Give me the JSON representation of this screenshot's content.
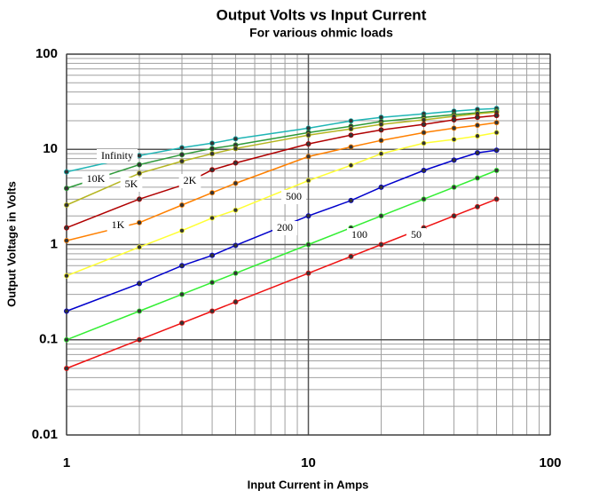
{
  "chart_data": {
    "type": "line",
    "title": "Output Volts vs Input Current",
    "subtitle": "For various ohmic loads",
    "x_label": "Input Current in Amps",
    "y_label": "Output Voltage in Volts",
    "x": [
      1,
      2,
      3,
      4,
      5,
      10,
      15,
      20,
      30,
      40,
      50,
      60
    ],
    "xscale": "log",
    "yscale": "log",
    "xlim": [
      1,
      100
    ],
    "ylim": [
      0.01,
      100
    ],
    "xticks": [
      1,
      10,
      100
    ],
    "yticks": [
      0.01,
      0.1,
      1,
      10,
      100
    ],
    "grid": true,
    "series": [
      {
        "name": "Infinity",
        "color": "#1fb5b5",
        "values": [
          5.8,
          8.6,
          10.4,
          11.6,
          12.9,
          16.7,
          19.9,
          21.7,
          23.6,
          25.2,
          26.3,
          26.9
        ]
      },
      {
        "name": "10K",
        "color": "#2e9a3a",
        "values": [
          3.9,
          6.9,
          8.8,
          10.2,
          11.1,
          15.0,
          17.5,
          19.6,
          21.7,
          23.2,
          24.2,
          25.2
        ]
      },
      {
        "name": "5K",
        "color": "#b5b520",
        "values": [
          2.6,
          5.6,
          7.5,
          9.0,
          10.2,
          14.1,
          16.4,
          18.3,
          20.4,
          22.2,
          23.7,
          24.6
        ]
      },
      {
        "name": "2K",
        "color": "#b00000",
        "values": [
          1.5,
          3.0,
          4.2,
          6.1,
          7.2,
          11.4,
          14.1,
          16.0,
          18.3,
          20.4,
          21.7,
          22.7
        ]
      },
      {
        "name": "1K",
        "color": "#ff8000",
        "values": [
          1.1,
          1.7,
          2.6,
          3.5,
          4.4,
          8.4,
          10.6,
          12.4,
          15.0,
          16.7,
          17.9,
          19.1
        ]
      },
      {
        "name": "500",
        "color": "#ffff33",
        "values": [
          0.47,
          0.94,
          1.4,
          1.9,
          2.3,
          4.7,
          6.8,
          9.0,
          11.6,
          12.7,
          13.8,
          15.0
        ]
      },
      {
        "name": "200",
        "color": "#0000cc",
        "values": [
          0.2,
          0.39,
          0.6,
          0.77,
          0.98,
          2.0,
          2.9,
          4.0,
          6.0,
          7.7,
          9.2,
          9.8
        ]
      },
      {
        "name": "100",
        "color": "#33ee33",
        "values": [
          0.1,
          0.2,
          0.3,
          0.4,
          0.5,
          1.0,
          1.5,
          2.0,
          3.0,
          4.0,
          5.0,
          6.0
        ]
      },
      {
        "name": "50",
        "color": "#ee1111",
        "values": [
          0.05,
          0.1,
          0.15,
          0.2,
          0.25,
          0.5,
          0.75,
          1.0,
          1.5,
          2.0,
          2.5,
          3.0
        ]
      }
    ]
  }
}
